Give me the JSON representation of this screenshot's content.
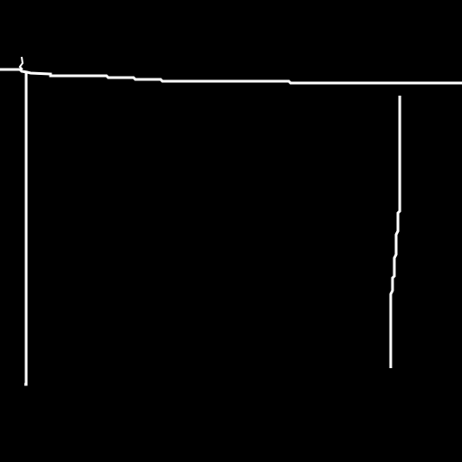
{
  "colors": {
    "background": "#000000",
    "stroke": "#ffffff"
  },
  "strokes": [
    {
      "name": "top-edge-line"
    },
    {
      "name": "left-vertical-line"
    },
    {
      "name": "left-corner-tick"
    },
    {
      "name": "right-vertical-line"
    }
  ]
}
